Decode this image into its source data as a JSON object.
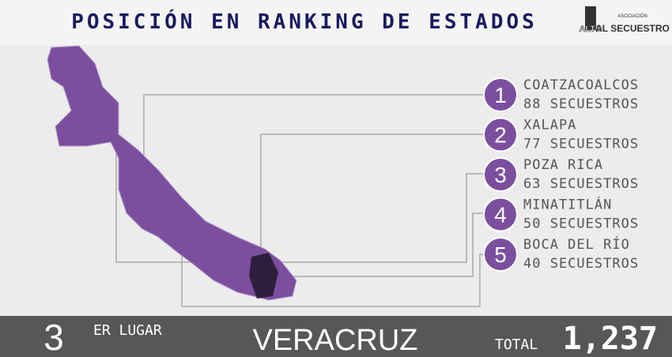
{
  "header": {
    "title": "POSICIÓN EN RANKING DE ESTADOS",
    "logo": {
      "small": "ASOCIACIÓN",
      "left": "ALTO",
      "right": "AL SECUESTRO"
    }
  },
  "ranking": [
    {
      "rank": "1",
      "city": "COATZACOALCOS",
      "count": "88 SECUESTROS"
    },
    {
      "rank": "2",
      "city": "XALAPA",
      "count": "77 SECUESTROS"
    },
    {
      "rank": "3",
      "city": "POZA RICA",
      "count": "63 SECUESTROS"
    },
    {
      "rank": "4",
      "city": "MINATITLÁN",
      "count": "50 SECUESTROS"
    },
    {
      "rank": "5",
      "city": "BOCA DEL RÍO",
      "count": "40 SECUESTROS"
    }
  ],
  "footer": {
    "position": "3",
    "position_suffix": "ER LUGAR",
    "state": "VERACRUZ",
    "total_label": "TOTAL",
    "total": "1,237"
  }
}
